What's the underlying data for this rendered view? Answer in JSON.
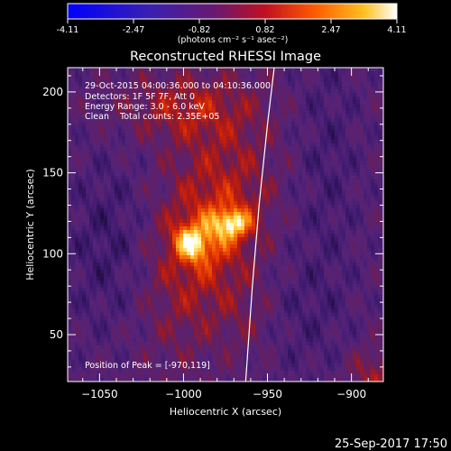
{
  "colorbar": {
    "ticks": [
      "-4.11",
      "-2.47",
      "-0.82",
      "0.82",
      "2.47",
      "4.11"
    ],
    "min": -4.11,
    "max": 4.11,
    "unit": "(photons cm⁻² s⁻¹ asec⁻²)"
  },
  "chart_data": {
    "type": "heatmap",
    "title": "Reconstructed RHESSI Image",
    "xlabel": "Heliocentric X (arcsec)",
    "ylabel": "Heliocentric Y (arcsec)",
    "xlim": [
      -1069,
      -881
    ],
    "ylim": [
      21,
      215
    ],
    "xticks": [
      -1050,
      -1000,
      -950,
      -900
    ],
    "yticks": [
      50,
      100,
      150,
      200
    ],
    "info": [
      "29-Oct-2015 04:00:36.000 to 04:10:36.000",
      "Detectors: 1F 5F 7F, Att 0",
      "Energy Range: 3.0 - 6.0 keV",
      "Clean    Total counts: 2.35E+05"
    ],
    "peak_label": "Position of Peak = [-970,119]",
    "peaks": [
      {
        "x": -970,
        "y": 119,
        "value": 4.11
      },
      {
        "x": -996,
        "y": 106,
        "value": 3.6
      }
    ],
    "colormap": [
      "#0000ff",
      "#3a1aa0",
      "#4a2a80",
      "#6a2060",
      "#a01818",
      "#e04010",
      "#ff9020",
      "#ffe060",
      "#ffffff"
    ],
    "limb_curve": [
      [
        -963,
        21
      ],
      [
        -959,
        80
      ],
      [
        -955,
        130
      ],
      [
        -950,
        180
      ],
      [
        -946,
        215
      ]
    ]
  },
  "footer": {
    "date": "25-Sep-2017 17:50"
  }
}
